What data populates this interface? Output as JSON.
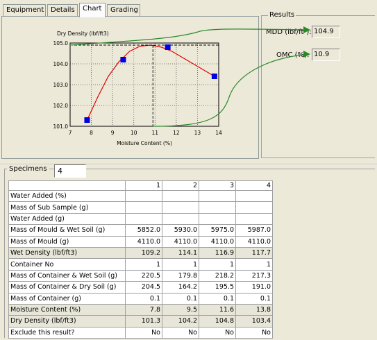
{
  "tabs": [
    {
      "label": "Equipment",
      "active": false
    },
    {
      "label": "Details",
      "active": false
    },
    {
      "label": "Chart",
      "active": true
    },
    {
      "label": "Grading",
      "active": false
    }
  ],
  "results": {
    "title": "Results",
    "mdd_label": "MDD (lbf/ft³):",
    "mdd_value": "104.9",
    "omc_label": "OMC (%):",
    "omc_value": "10.9"
  },
  "specimens": {
    "label": "Specimens",
    "value": "4"
  },
  "table": {
    "columns": [
      "",
      "1",
      "2",
      "3",
      "4"
    ],
    "rows": [
      {
        "label": "Water Added (%)",
        "values": [
          "",
          "",
          "",
          ""
        ],
        "calc": false
      },
      {
        "label": "Mass of Sub Sample (g)",
        "values": [
          "",
          "",
          "",
          ""
        ],
        "calc": false
      },
      {
        "label": "Water Added (g)",
        "values": [
          "",
          "",
          "",
          ""
        ],
        "calc": false
      },
      {
        "label": "Mass of Mould & Wet Soil (g)",
        "values": [
          "5852.0",
          "5930.0",
          "5975.0",
          "5987.0"
        ],
        "calc": false
      },
      {
        "label": "Mass of Mould (g)",
        "values": [
          "4110.0",
          "4110.0",
          "4110.0",
          "4110.0"
        ],
        "calc": false
      },
      {
        "label": "Wet Density (lbf/ft3)",
        "values": [
          "109.2",
          "114.1",
          "116.9",
          "117.7"
        ],
        "calc": true
      },
      {
        "label": "Container No",
        "values": [
          "1",
          "1",
          "1",
          "1"
        ],
        "calc": false
      },
      {
        "label": "Mass of Container & Wet Soil (g)",
        "values": [
          "220.5",
          "179.8",
          "218.2",
          "217.3"
        ],
        "calc": false
      },
      {
        "label": "Mass of Container & Dry Soil (g)",
        "values": [
          "204.5",
          "164.2",
          "195.5",
          "191.0"
        ],
        "calc": false
      },
      {
        "label": "Mass of Container (g)",
        "values": [
          "0.1",
          "0.1",
          "0.1",
          "0.1"
        ],
        "calc": false
      },
      {
        "label": "Moisture Content (%)",
        "values": [
          "7.8",
          "9.5",
          "11.6",
          "13.8"
        ],
        "calc": true
      },
      {
        "label": "Dry Density (lbf/ft3)",
        "values": [
          "101.3",
          "104.2",
          "104.8",
          "103.4"
        ],
        "calc": true
      },
      {
        "label": "Exclude this result?",
        "values": [
          "No",
          "No",
          "No",
          "No"
        ],
        "calc": false
      }
    ]
  },
  "colors": {
    "curve": "#e00000",
    "point": "#0000e0",
    "arrow": "#2a8a2a",
    "calc_row": "#e8e6d8"
  },
  "chart_data": {
    "type": "scatter",
    "ylabel": "Dry Density (lbf/ft3)",
    "xlabel": "Moisture Content (%)",
    "xlim": [
      7,
      14
    ],
    "ylim": [
      101.0,
      105.0
    ],
    "xticks": [
      "7",
      "8",
      "9",
      "10",
      "11",
      "12",
      "13",
      "14"
    ],
    "yticks": [
      "101.0",
      "102.0",
      "103.0",
      "104.0",
      "105.0"
    ],
    "grid": true,
    "series": [
      {
        "values_x": [
          7.8,
          9.5,
          11.6,
          13.8
        ],
        "values_y": [
          101.3,
          104.2,
          104.8,
          103.4
        ]
      }
    ],
    "fit_curve": {
      "x": [
        7.8,
        8.3,
        8.8,
        9.3,
        9.8,
        10.3,
        10.8,
        11.3,
        11.8,
        12.3,
        12.8,
        13.3,
        13.8
      ],
      "y": [
        101.3,
        102.4,
        103.4,
        104.1,
        104.6,
        104.85,
        104.9,
        104.8,
        104.6,
        104.3,
        104.0,
        103.7,
        103.4
      ]
    },
    "optimum": {
      "x": 10.9,
      "y": 104.9
    }
  }
}
